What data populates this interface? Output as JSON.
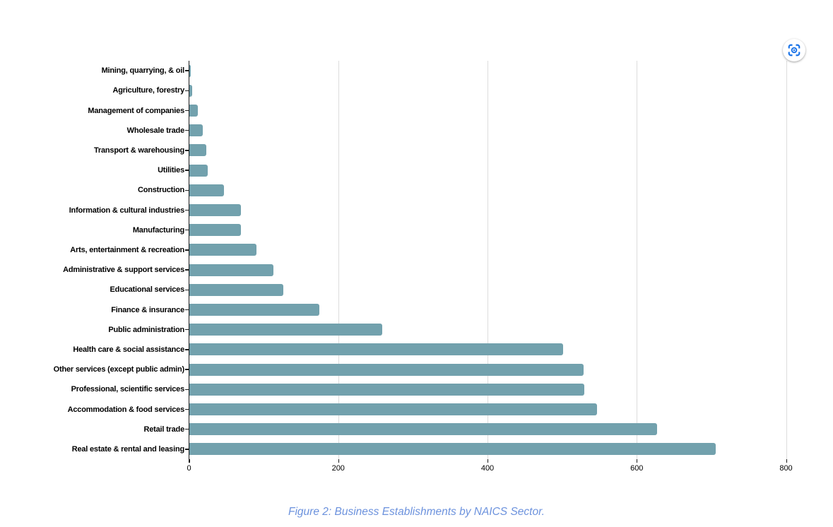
{
  "chart_data": {
    "type": "bar",
    "orientation": "horizontal",
    "title": "",
    "xlabel": "",
    "ylabel": "",
    "categories": [
      "Mining, quarrying, & oil",
      "Agriculture, forestry",
      "Management of companies",
      "Wholesale trade",
      "Transport & warehousing",
      "Utilities",
      "Construction",
      "Information & cultural industries",
      "Manufacturing",
      "Arts, entertainment & recreation",
      "Administrative & support services",
      "Educational services",
      "Finance & insurance",
      "Public administration",
      "Health care & social assistance",
      "Other services (except public admin)",
      "Professional, scientific services",
      "Accommodation & food services",
      "Retail trade",
      "Real estate & rental and leasing"
    ],
    "values": [
      2,
      4,
      12,
      18,
      23,
      25,
      47,
      70,
      70,
      90,
      113,
      126,
      175,
      259,
      501,
      529,
      530,
      547,
      627,
      706
    ],
    "xlim": [
      0,
      800
    ],
    "x_ticks": [
      0,
      200,
      400,
      600,
      800
    ],
    "x_tick_labels": [
      "0",
      "200",
      "400",
      "600",
      "800"
    ],
    "grid": true,
    "legend": "none",
    "bar_color": "#72a1ad",
    "grid_color": "#dddddd",
    "axis_color": "#1b1b1b",
    "label_color": "#000000"
  },
  "caption": {
    "text": "Figure 2: Business Establishments by NAICS Sector.",
    "color": "#6c92dd"
  },
  "toolbar": {
    "lens_icon_color": "#1a73e8"
  }
}
